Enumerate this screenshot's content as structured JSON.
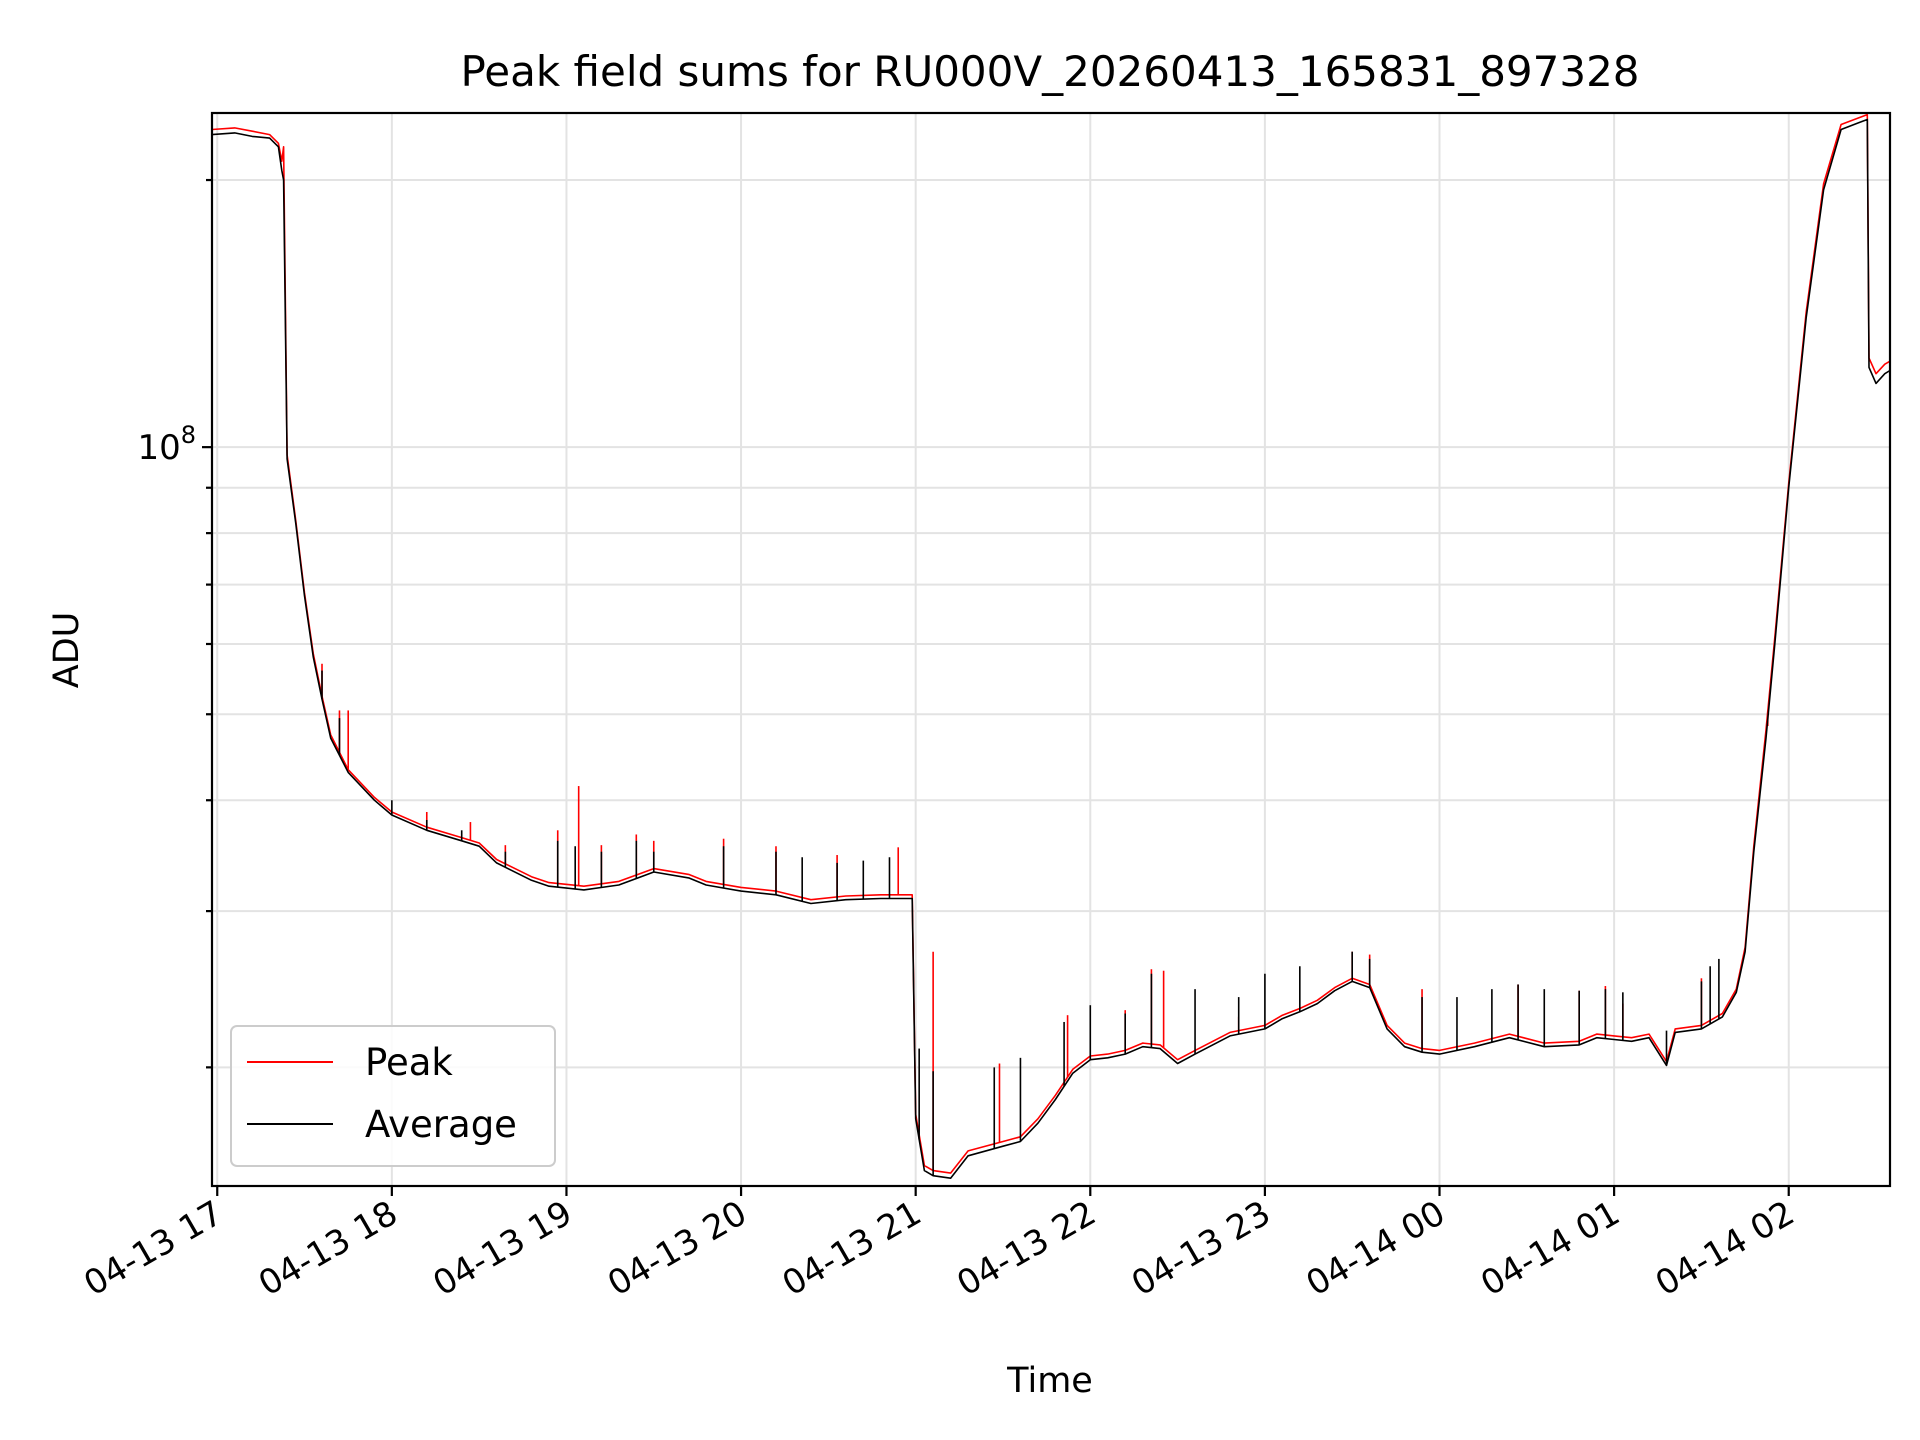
{
  "chart_data": {
    "type": "line",
    "title": "Peak field sums for RU000V_20260413_165831_897328",
    "xlabel": "Time",
    "ylabel": "ADU",
    "yscale": "log",
    "xlim": [
      16.97,
      26.58
    ],
    "ylim": [
      14700000,
      238000000
    ],
    "grid": true,
    "legend_position": "lower-left",
    "x_unit": "hours since 2026-04-13 00:00",
    "x_ticks": [
      {
        "value": 17,
        "label": "04-13 17"
      },
      {
        "value": 18,
        "label": "04-13 18"
      },
      {
        "value": 19,
        "label": "04-13 19"
      },
      {
        "value": 20,
        "label": "04-13 20"
      },
      {
        "value": 21,
        "label": "04-13 21"
      },
      {
        "value": 22,
        "label": "04-13 22"
      },
      {
        "value": 23,
        "label": "04-13 23"
      },
      {
        "value": 24,
        "label": "04-14 00"
      },
      {
        "value": 25,
        "label": "04-14 01"
      },
      {
        "value": 26,
        "label": "04-14 02"
      }
    ],
    "y_major_ticks": [
      {
        "value": 100000000,
        "base": "10",
        "exp": "8"
      }
    ],
    "y_minor_ticks": [
      20000000,
      30000000,
      40000000,
      50000000,
      60000000,
      70000000,
      80000000,
      90000000,
      200000000
    ],
    "series": [
      {
        "name": "Average",
        "color": "#000000",
        "points": [
          [
            16.97,
            225000000
          ],
          [
            17.1,
            226000000
          ],
          [
            17.2,
            224000000
          ],
          [
            17.3,
            223000000
          ],
          [
            17.35,
            218000000
          ],
          [
            17.37,
            205000000
          ],
          [
            17.38,
            200000000
          ],
          [
            17.4,
            97000000
          ],
          [
            17.45,
            82000000
          ],
          [
            17.5,
            68000000
          ],
          [
            17.55,
            58000000
          ],
          [
            17.6,
            52000000
          ],
          [
            17.65,
            47000000
          ],
          [
            17.75,
            43000000
          ],
          [
            17.9,
            40000000
          ],
          [
            18.0,
            38500000
          ],
          [
            18.2,
            37000000
          ],
          [
            18.4,
            36000000
          ],
          [
            18.5,
            35500000
          ],
          [
            18.6,
            34000000
          ],
          [
            18.8,
            32500000
          ],
          [
            18.9,
            32000000
          ],
          [
            19.1,
            31700000
          ],
          [
            19.3,
            32100000
          ],
          [
            19.5,
            33200000
          ],
          [
            19.7,
            32700000
          ],
          [
            19.8,
            32100000
          ],
          [
            20.0,
            31600000
          ],
          [
            20.2,
            31300000
          ],
          [
            20.4,
            30600000
          ],
          [
            20.6,
            30900000
          ],
          [
            20.8,
            31000000
          ],
          [
            20.98,
            31000000
          ],
          [
            21.0,
            17500000
          ],
          [
            21.05,
            15300000
          ],
          [
            21.1,
            15100000
          ],
          [
            21.2,
            15000000
          ],
          [
            21.3,
            15900000
          ],
          [
            21.5,
            16300000
          ],
          [
            21.6,
            16500000
          ],
          [
            21.7,
            17300000
          ],
          [
            21.8,
            18400000
          ],
          [
            21.9,
            19700000
          ],
          [
            22.0,
            20400000
          ],
          [
            22.1,
            20500000
          ],
          [
            22.2,
            20700000
          ],
          [
            22.3,
            21100000
          ],
          [
            22.4,
            21000000
          ],
          [
            22.5,
            20200000
          ],
          [
            22.6,
            20700000
          ],
          [
            22.8,
            21700000
          ],
          [
            23.0,
            22100000
          ],
          [
            23.1,
            22700000
          ],
          [
            23.2,
            23100000
          ],
          [
            23.3,
            23600000
          ],
          [
            23.4,
            24400000
          ],
          [
            23.5,
            25000000
          ],
          [
            23.6,
            24600000
          ],
          [
            23.7,
            22100000
          ],
          [
            23.8,
            21100000
          ],
          [
            23.9,
            20800000
          ],
          [
            24.0,
            20700000
          ],
          [
            24.2,
            21100000
          ],
          [
            24.4,
            21600000
          ],
          [
            24.6,
            21100000
          ],
          [
            24.8,
            21200000
          ],
          [
            24.9,
            21600000
          ],
          [
            25.0,
            21500000
          ],
          [
            25.1,
            21400000
          ],
          [
            25.2,
            21600000
          ],
          [
            25.3,
            20100000
          ],
          [
            25.35,
            21900000
          ],
          [
            25.5,
            22100000
          ],
          [
            25.62,
            22800000
          ],
          [
            25.7,
            24300000
          ],
          [
            25.75,
            27000000
          ],
          [
            25.8,
            35000000
          ],
          [
            25.87,
            47000000
          ],
          [
            25.92,
            60000000
          ],
          [
            26.0,
            90000000
          ],
          [
            26.1,
            140000000
          ],
          [
            26.2,
            195000000
          ],
          [
            26.3,
            228000000
          ],
          [
            26.4,
            232000000
          ],
          [
            26.45,
            234000000
          ],
          [
            26.46,
            123000000
          ],
          [
            26.5,
            118000000
          ],
          [
            26.55,
            121000000
          ],
          [
            26.58,
            122000000
          ]
        ],
        "spikes": [
          [
            17.6,
            56000000
          ],
          [
            17.7,
            49500000
          ],
          [
            18.0,
            40000000
          ],
          [
            18.2,
            38000000
          ],
          [
            18.4,
            37000000
          ],
          [
            18.65,
            35000000
          ],
          [
            18.95,
            36000000
          ],
          [
            19.05,
            35500000
          ],
          [
            19.2,
            35000000
          ],
          [
            19.4,
            36000000
          ],
          [
            19.5,
            35000000
          ],
          [
            19.9,
            35500000
          ],
          [
            20.2,
            35000000
          ],
          [
            20.35,
            34500000
          ],
          [
            20.55,
            34000000
          ],
          [
            20.7,
            34200000
          ],
          [
            20.85,
            34500000
          ],
          [
            21.02,
            21000000
          ],
          [
            21.1,
            19800000
          ],
          [
            21.45,
            20000000
          ],
          [
            21.6,
            20500000
          ],
          [
            21.85,
            22500000
          ],
          [
            22.0,
            23500000
          ],
          [
            22.2,
            23000000
          ],
          [
            22.35,
            25500000
          ],
          [
            22.6,
            24500000
          ],
          [
            22.85,
            24000000
          ],
          [
            23.0,
            25500000
          ],
          [
            23.2,
            26000000
          ],
          [
            23.5,
            27000000
          ],
          [
            23.6,
            26500000
          ],
          [
            23.9,
            24000000
          ],
          [
            24.1,
            24000000
          ],
          [
            24.3,
            24500000
          ],
          [
            24.45,
            24800000
          ],
          [
            24.6,
            24500000
          ],
          [
            24.8,
            24400000
          ],
          [
            24.95,
            24500000
          ],
          [
            25.05,
            24300000
          ],
          [
            25.3,
            22000000
          ],
          [
            25.5,
            25000000
          ],
          [
            25.55,
            26000000
          ],
          [
            25.6,
            26500000
          ]
        ]
      },
      {
        "name": "Peak",
        "color": "#ff0000",
        "points": [
          [
            16.97,
            228000000
          ],
          [
            17.1,
            229000000
          ],
          [
            17.2,
            227000000
          ],
          [
            17.3,
            225000000
          ],
          [
            17.35,
            220000000
          ],
          [
            17.37,
            210000000
          ],
          [
            17.38,
            218000000
          ],
          [
            17.4,
            98000000
          ],
          [
            17.45,
            82600000
          ],
          [
            17.5,
            68500000
          ],
          [
            17.55,
            58500000
          ],
          [
            17.6,
            52400000
          ],
          [
            17.65,
            47400000
          ],
          [
            17.75,
            43300000
          ],
          [
            17.9,
            40300000
          ],
          [
            18.0,
            38800000
          ],
          [
            18.2,
            37300000
          ],
          [
            18.4,
            36300000
          ],
          [
            18.5,
            35800000
          ],
          [
            18.6,
            34300000
          ],
          [
            18.8,
            32800000
          ],
          [
            18.9,
            32300000
          ],
          [
            19.1,
            32000000
          ],
          [
            19.3,
            32400000
          ],
          [
            19.5,
            33500000
          ],
          [
            19.7,
            33000000
          ],
          [
            19.8,
            32400000
          ],
          [
            20.0,
            31900000
          ],
          [
            20.2,
            31600000
          ],
          [
            20.4,
            30900000
          ],
          [
            20.6,
            31200000
          ],
          [
            20.8,
            31300000
          ],
          [
            20.98,
            31300000
          ],
          [
            21.0,
            17700000
          ],
          [
            21.05,
            15500000
          ],
          [
            21.1,
            15300000
          ],
          [
            21.2,
            15200000
          ],
          [
            21.3,
            16100000
          ],
          [
            21.5,
            16500000
          ],
          [
            21.6,
            16700000
          ],
          [
            21.7,
            17500000
          ],
          [
            21.8,
            18600000
          ],
          [
            21.9,
            19900000
          ],
          [
            22.0,
            20600000
          ],
          [
            22.1,
            20700000
          ],
          [
            22.2,
            20900000
          ],
          [
            22.3,
            21300000
          ],
          [
            22.4,
            21200000
          ],
          [
            22.5,
            20400000
          ],
          [
            22.6,
            20900000
          ],
          [
            22.8,
            21900000
          ],
          [
            23.0,
            22300000
          ],
          [
            23.1,
            22900000
          ],
          [
            23.2,
            23300000
          ],
          [
            23.3,
            23800000
          ],
          [
            23.4,
            24600000
          ],
          [
            23.5,
            25200000
          ],
          [
            23.6,
            24800000
          ],
          [
            23.7,
            22300000
          ],
          [
            23.8,
            21300000
          ],
          [
            23.9,
            21000000
          ],
          [
            24.0,
            20900000
          ],
          [
            24.2,
            21300000
          ],
          [
            24.4,
            21800000
          ],
          [
            24.6,
            21300000
          ],
          [
            24.8,
            21400000
          ],
          [
            24.9,
            21800000
          ],
          [
            25.0,
            21700000
          ],
          [
            25.1,
            21600000
          ],
          [
            25.2,
            21800000
          ],
          [
            25.3,
            20300000
          ],
          [
            25.35,
            22100000
          ],
          [
            25.5,
            22300000
          ],
          [
            25.62,
            23000000
          ],
          [
            25.7,
            24500000
          ],
          [
            25.75,
            27300000
          ],
          [
            25.8,
            35500000
          ],
          [
            25.87,
            48000000
          ],
          [
            25.92,
            61000000
          ],
          [
            26.0,
            91000000
          ],
          [
            26.1,
            142000000
          ],
          [
            26.2,
            198000000
          ],
          [
            26.3,
            231000000
          ],
          [
            26.4,
            235000000
          ],
          [
            26.45,
            237000000
          ],
          [
            26.46,
            126000000
          ],
          [
            26.5,
            121000000
          ],
          [
            26.55,
            124000000
          ],
          [
            26.58,
            125000000
          ]
        ],
        "spikes": [
          [
            17.6,
            57000000
          ],
          [
            17.7,
            50500000
          ],
          [
            17.75,
            50500000
          ],
          [
            18.2,
            38800000
          ],
          [
            18.45,
            37800000
          ],
          [
            18.65,
            35600000
          ],
          [
            18.95,
            37000000
          ],
          [
            19.07,
            41500000
          ],
          [
            19.2,
            35600000
          ],
          [
            19.4,
            36600000
          ],
          [
            19.5,
            36000000
          ],
          [
            19.9,
            36200000
          ],
          [
            20.2,
            35500000
          ],
          [
            20.55,
            34700000
          ],
          [
            20.9,
            35400000
          ],
          [
            21.1,
            27000000
          ],
          [
            21.48,
            20200000
          ],
          [
            21.87,
            22900000
          ],
          [
            22.2,
            23200000
          ],
          [
            22.35,
            25800000
          ],
          [
            22.42,
            25700000
          ],
          [
            22.85,
            22800000
          ],
          [
            23.5,
            27000000
          ],
          [
            23.6,
            26800000
          ],
          [
            23.9,
            24500000
          ],
          [
            24.45,
            24800000
          ],
          [
            24.8,
            24400000
          ],
          [
            24.95,
            24700000
          ],
          [
            25.05,
            23600000
          ],
          [
            25.5,
            25200000
          ],
          [
            25.88,
            48500000
          ]
        ]
      }
    ]
  },
  "legend": {
    "entries": [
      {
        "label": "Peak",
        "color": "#ff0000"
      },
      {
        "label": "Average",
        "color": "#000000"
      }
    ]
  }
}
